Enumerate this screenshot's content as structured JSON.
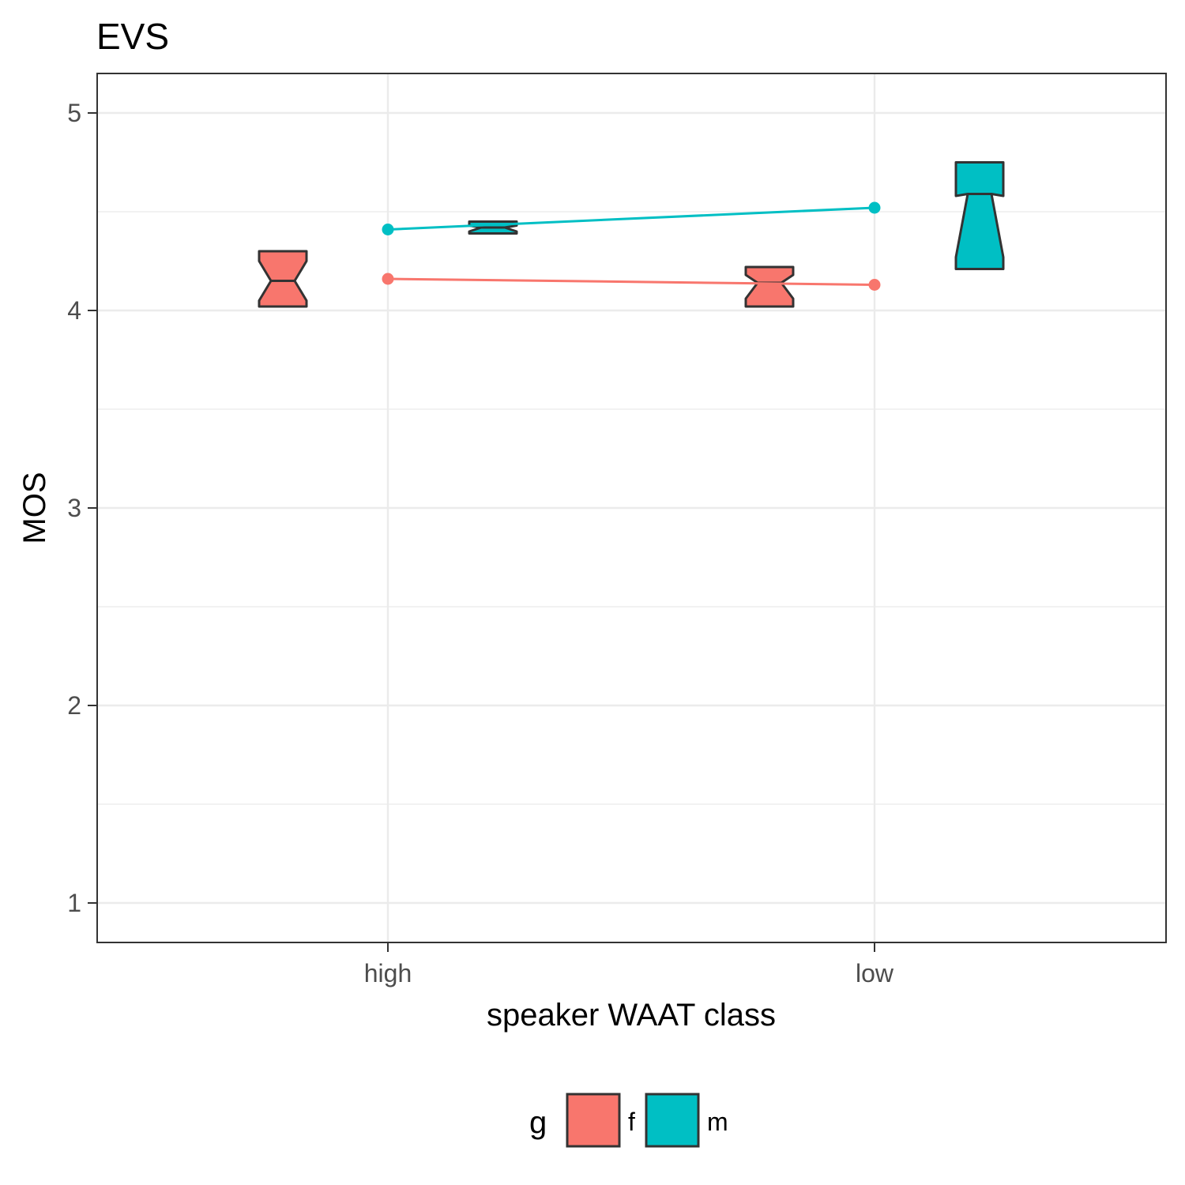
{
  "chart_data": {
    "type": "box",
    "title": "EVS",
    "xlabel": "speaker WAAT class",
    "ylabel": "MOS",
    "categories": [
      "high",
      "low"
    ],
    "ylim": [
      0.8,
      5.2
    ],
    "yticks": [
      1,
      2,
      3,
      4,
      5
    ],
    "grid": true,
    "legend": {
      "title": "g",
      "placement": "bottom",
      "entries": [
        {
          "label": "f",
          "color": "#F8766D"
        },
        {
          "label": "m",
          "color": "#00BFC4"
        }
      ]
    },
    "series": [
      {
        "name": "f",
        "color": "#F8766D",
        "boxes": [
          {
            "category": "high",
            "lower": 4.02,
            "q1": 4.02,
            "notch_low": 4.05,
            "median": 4.15,
            "notch_high": 4.25,
            "q3": 4.3,
            "upper": 4.3
          },
          {
            "category": "low",
            "lower": 4.02,
            "q1": 4.02,
            "notch_low": 4.06,
            "median": 4.14,
            "notch_high": 4.18,
            "q3": 4.22,
            "upper": 4.22
          }
        ],
        "mean_line": [
          {
            "category": "high",
            "value": 4.16
          },
          {
            "category": "low",
            "value": 4.13
          }
        ]
      },
      {
        "name": "m",
        "color": "#00BFC4",
        "boxes": [
          {
            "category": "high",
            "lower": 4.39,
            "q1": 4.39,
            "notch_low": 4.4,
            "median": 4.42,
            "notch_high": 4.43,
            "q3": 4.45,
            "upper": 4.45
          },
          {
            "category": "low",
            "lower": 4.21,
            "q1": 4.21,
            "notch_low": 4.27,
            "median": 4.59,
            "notch_high": 4.58,
            "q3": 4.75,
            "upper": 4.75
          }
        ],
        "mean_line": [
          {
            "category": "high",
            "value": 4.41
          },
          {
            "category": "low",
            "value": 4.52
          }
        ]
      }
    ]
  }
}
